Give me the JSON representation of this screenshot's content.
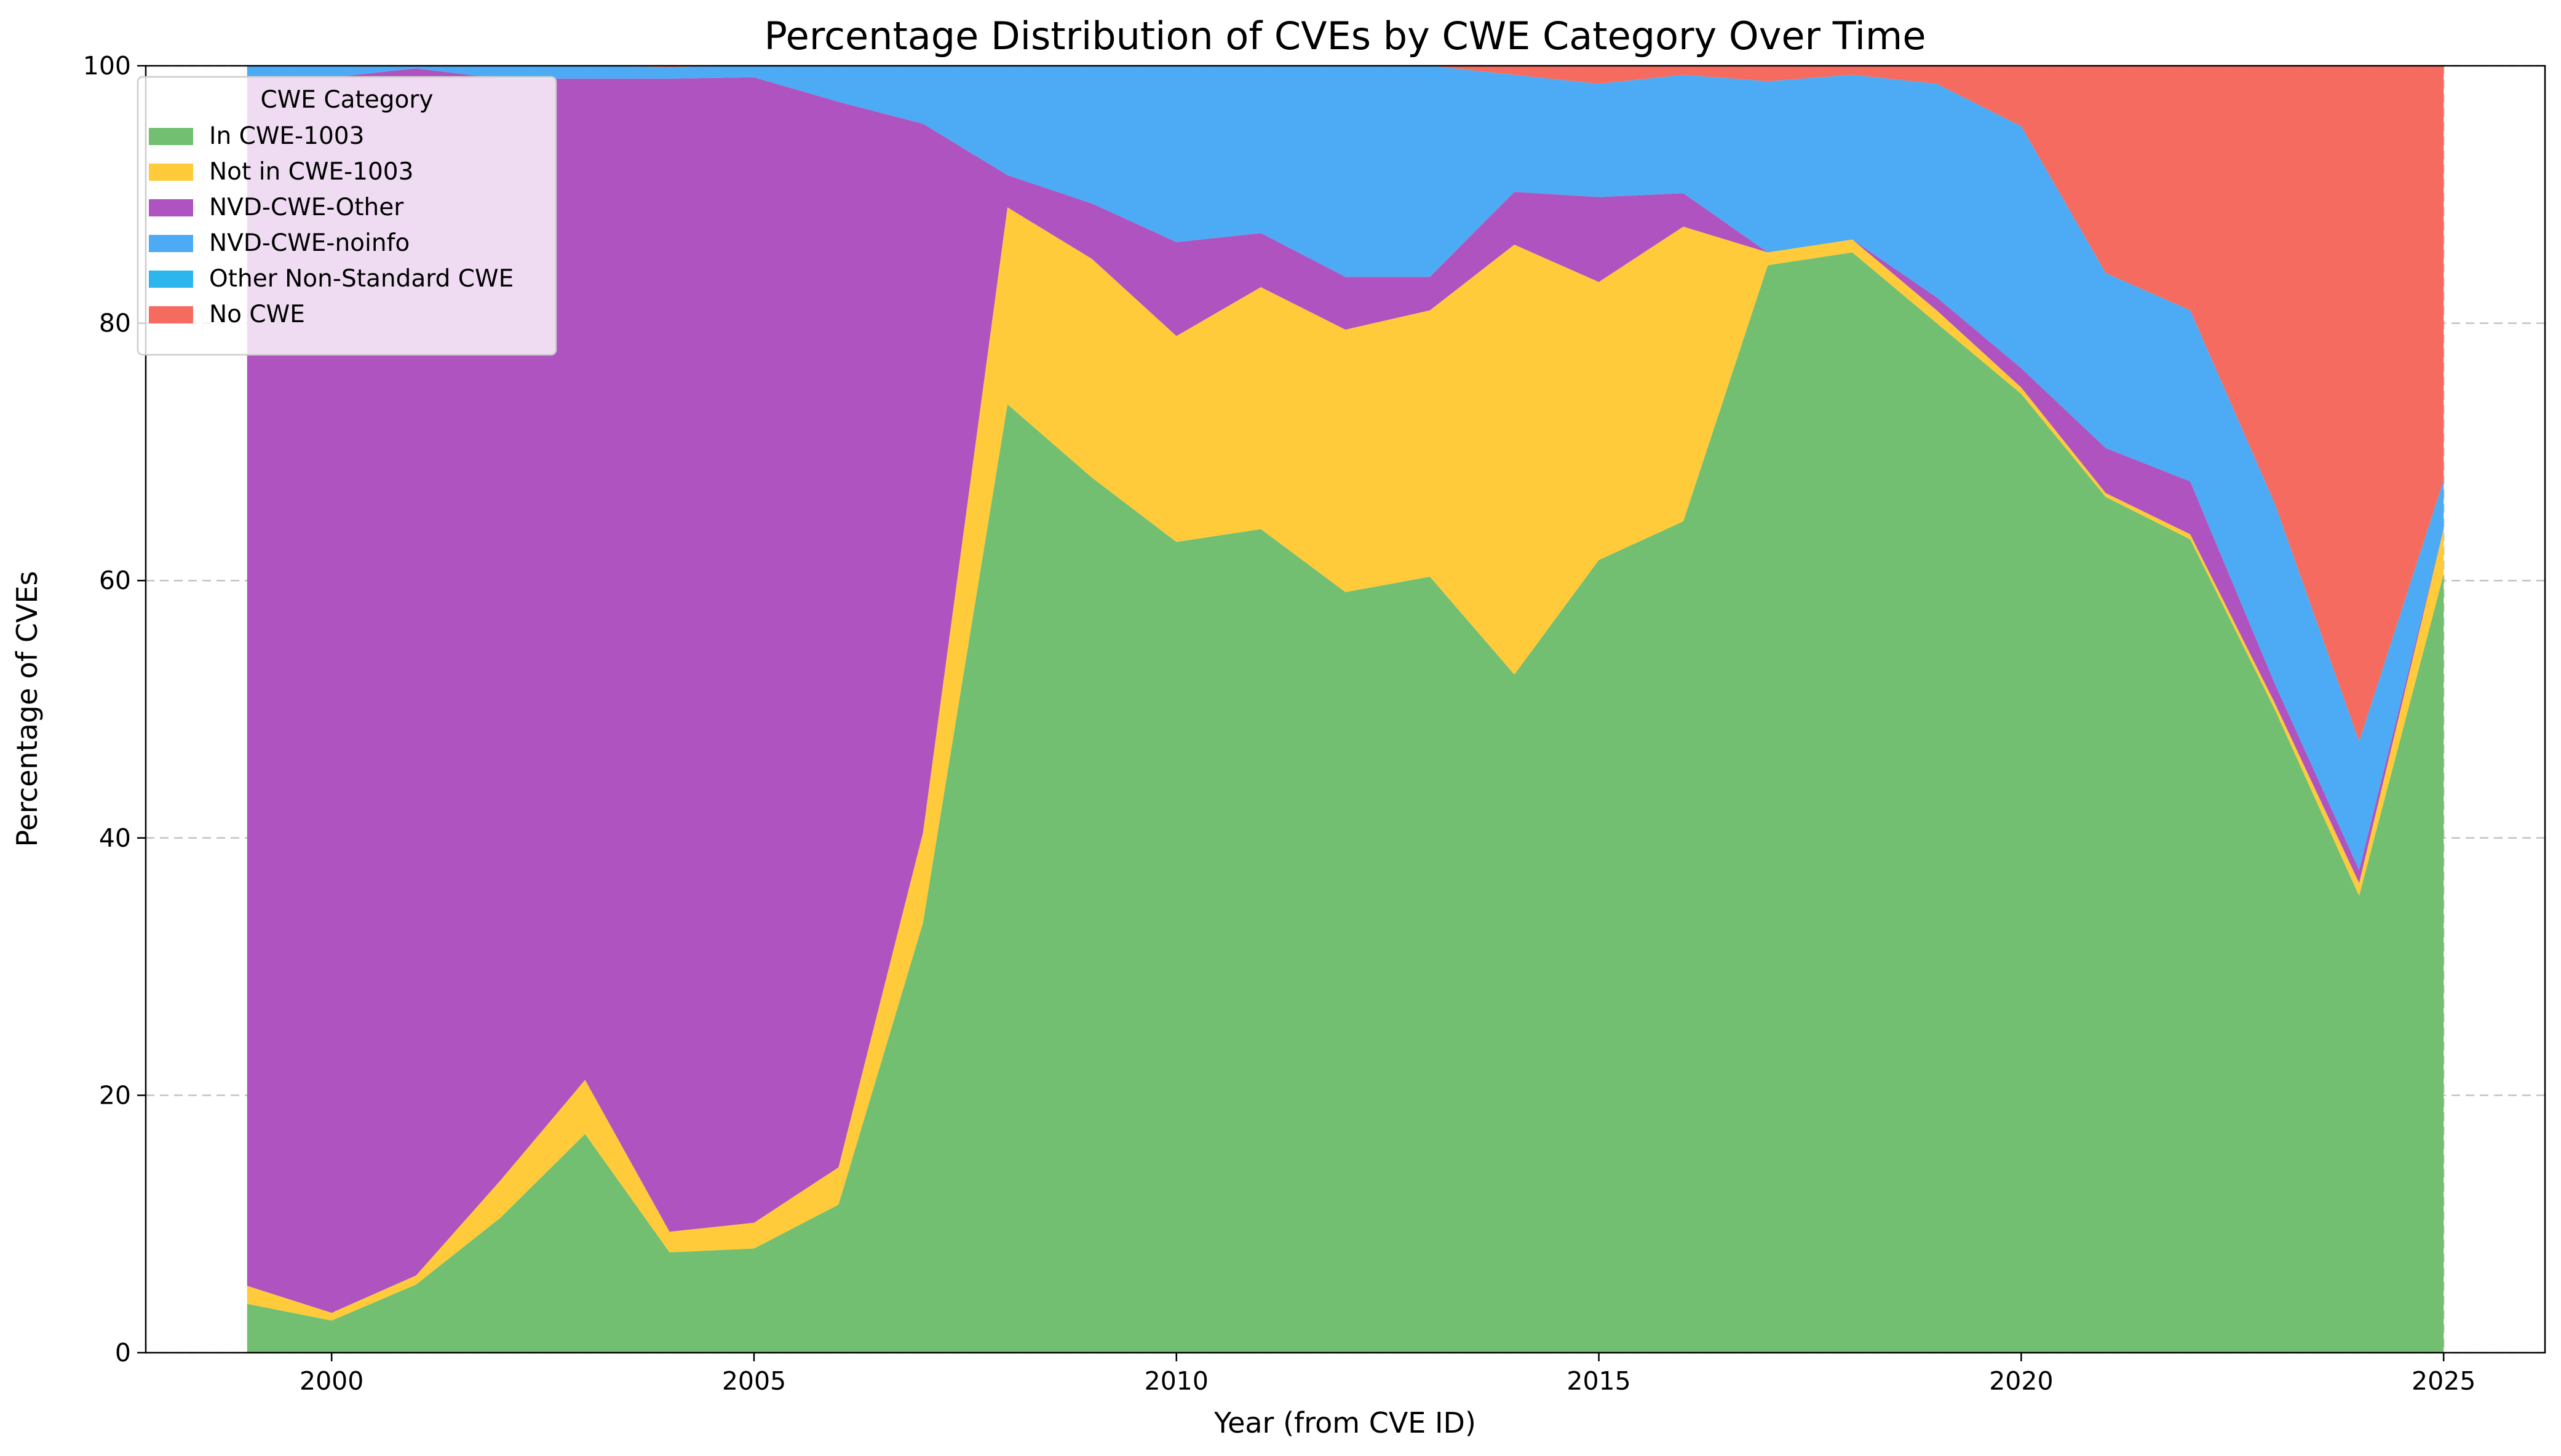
{
  "chart_data": {
    "type": "area",
    "stacked": true,
    "title": "Percentage Distribution of CVEs by CWE Category Over Time",
    "xlabel": "Year (from CVE ID)",
    "ylabel": "Percentage of CVEs",
    "xlim": [
      1997.8,
      2026.2
    ],
    "ylim": [
      0,
      100
    ],
    "xticks": [
      2000,
      2005,
      2010,
      2015,
      2020,
      2025
    ],
    "yticks": [
      0,
      20,
      40,
      60,
      80,
      100
    ],
    "grid": true,
    "legend": {
      "title": "CWE Category",
      "placement": "top-left"
    },
    "x": [
      1999,
      2000,
      2001,
      2002,
      2003,
      2004,
      2005,
      2006,
      2007,
      2008,
      2009,
      2010,
      2011,
      2012,
      2013,
      2014,
      2015,
      2016,
      2017,
      2018,
      2019,
      2020,
      2021,
      2022,
      2023,
      2024,
      2025
    ],
    "series": [
      {
        "name": "In CWE-1003",
        "color": "#72bf72",
        "values": [
          3.8,
          2.5,
          5.3,
          10.5,
          17.0,
          7.8,
          8.1,
          11.5,
          33.4,
          73.7,
          68.0,
          63.0,
          64.0,
          59.1,
          60.3,
          52.7,
          61.6,
          64.6,
          84.5,
          85.5,
          80.0,
          74.5,
          66.5,
          63.2,
          50.0,
          35.5,
          60.5
        ]
      },
      {
        "name": "Not in CWE-1003",
        "color": "#ffcb3a",
        "values": [
          1.4,
          0.6,
          0.7,
          2.9,
          4.2,
          1.6,
          2.0,
          2.9,
          7.0,
          15.3,
          17.0,
          16.0,
          18.8,
          20.4,
          20.7,
          33.4,
          21.6,
          22.9,
          1.0,
          1.0,
          1.0,
          0.5,
          0.3,
          0.4,
          0.5,
          1.0,
          3.5
        ]
      },
      {
        "name": "NVD-CWE-Other",
        "color": "#ae53bf",
        "values": [
          94.0,
          96.0,
          93.8,
          85.6,
          77.8,
          89.6,
          89.0,
          82.8,
          55.1,
          2.5,
          4.3,
          7.3,
          4.2,
          4.1,
          2.6,
          4.1,
          6.6,
          2.6,
          0.0,
          0.0,
          1.0,
          1.5,
          3.5,
          4.1,
          1.5,
          1.0,
          0.0
        ]
      },
      {
        "name": "NVD-CWE-noinfo",
        "color": "#4cabf4",
        "values": [
          0.8,
          0.9,
          0.2,
          1.0,
          1.0,
          0.9,
          0.9,
          2.8,
          4.5,
          8.5,
          10.7,
          13.7,
          13.0,
          16.4,
          16.4,
          9.1,
          8.8,
          9.2,
          13.3,
          12.8,
          16.6,
          18.8,
          13.6,
          13.3,
          14.0,
          10.0,
          3.8
        ]
      },
      {
        "name": "Other Non-Standard CWE",
        "color": "#2db5ee",
        "values": [
          0,
          0,
          0,
          0,
          0,
          0,
          0,
          0,
          0,
          0,
          0,
          0,
          0,
          0,
          0,
          0,
          0,
          0,
          0,
          0,
          0,
          0,
          0,
          0,
          0,
          0,
          0
        ]
      },
      {
        "name": "No CWE",
        "color": "#f66b60",
        "values": [
          0.0,
          0.0,
          0.0,
          0.0,
          0.0,
          0.1,
          0.0,
          0.0,
          0.0,
          0.0,
          0.0,
          0.0,
          0.0,
          0.0,
          0.0,
          0.7,
          1.4,
          0.7,
          1.2,
          0.7,
          1.4,
          4.7,
          16.1,
          19.0,
          34.0,
          52.5,
          32.2
        ]
      }
    ]
  }
}
